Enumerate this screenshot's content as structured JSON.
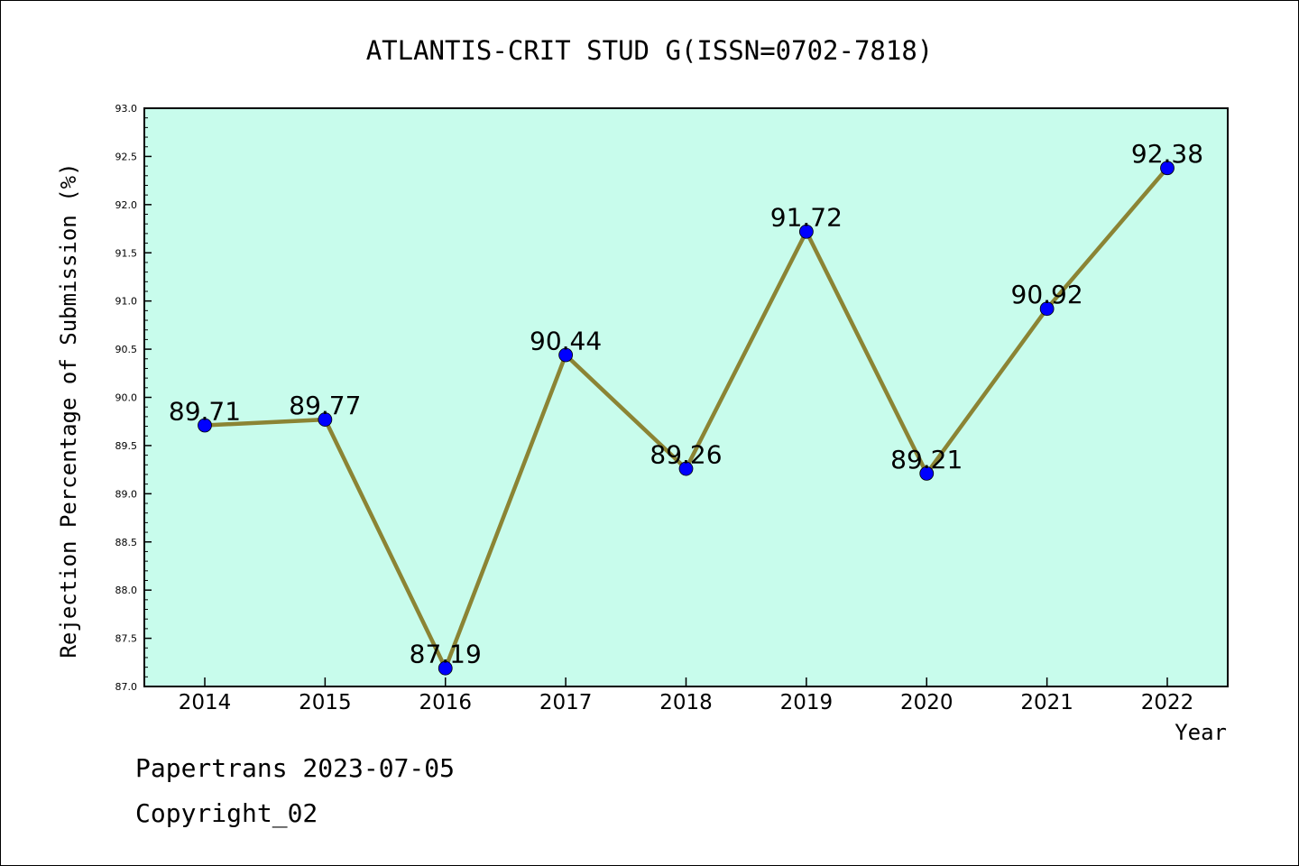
{
  "chart_data": {
    "type": "line",
    "title": "ATLANTIS-CRIT STUD G(ISSN=0702-7818)",
    "xlabel": "Year",
    "ylabel": "Rejection Percentage of Submission (%)",
    "categories": [
      "2014",
      "2015",
      "2016",
      "2017",
      "2018",
      "2019",
      "2020",
      "2021",
      "2022"
    ],
    "values": [
      89.71,
      89.77,
      87.19,
      90.44,
      89.26,
      91.72,
      89.21,
      90.92,
      92.38
    ],
    "data_labels": [
      "89.71",
      "89.77",
      "87.19",
      "90.44",
      "89.26",
      "91.72",
      "89.21",
      "90.92",
      "92.38"
    ],
    "ylim": [
      87.0,
      93.0
    ],
    "yticks": [
      "87.0",
      "87.5",
      "88.0",
      "88.5",
      "89.0",
      "89.5",
      "90.0",
      "90.5",
      "91.0",
      "91.5",
      "92.0",
      "92.5",
      "93.0"
    ],
    "grid": false,
    "colors": {
      "plot_background": "#c8fcec",
      "line": "#8b8434",
      "marker": "#0000ff"
    }
  },
  "footer": {
    "line1": "Papertrans 2023-07-05",
    "line2": "Copyright_02"
  }
}
